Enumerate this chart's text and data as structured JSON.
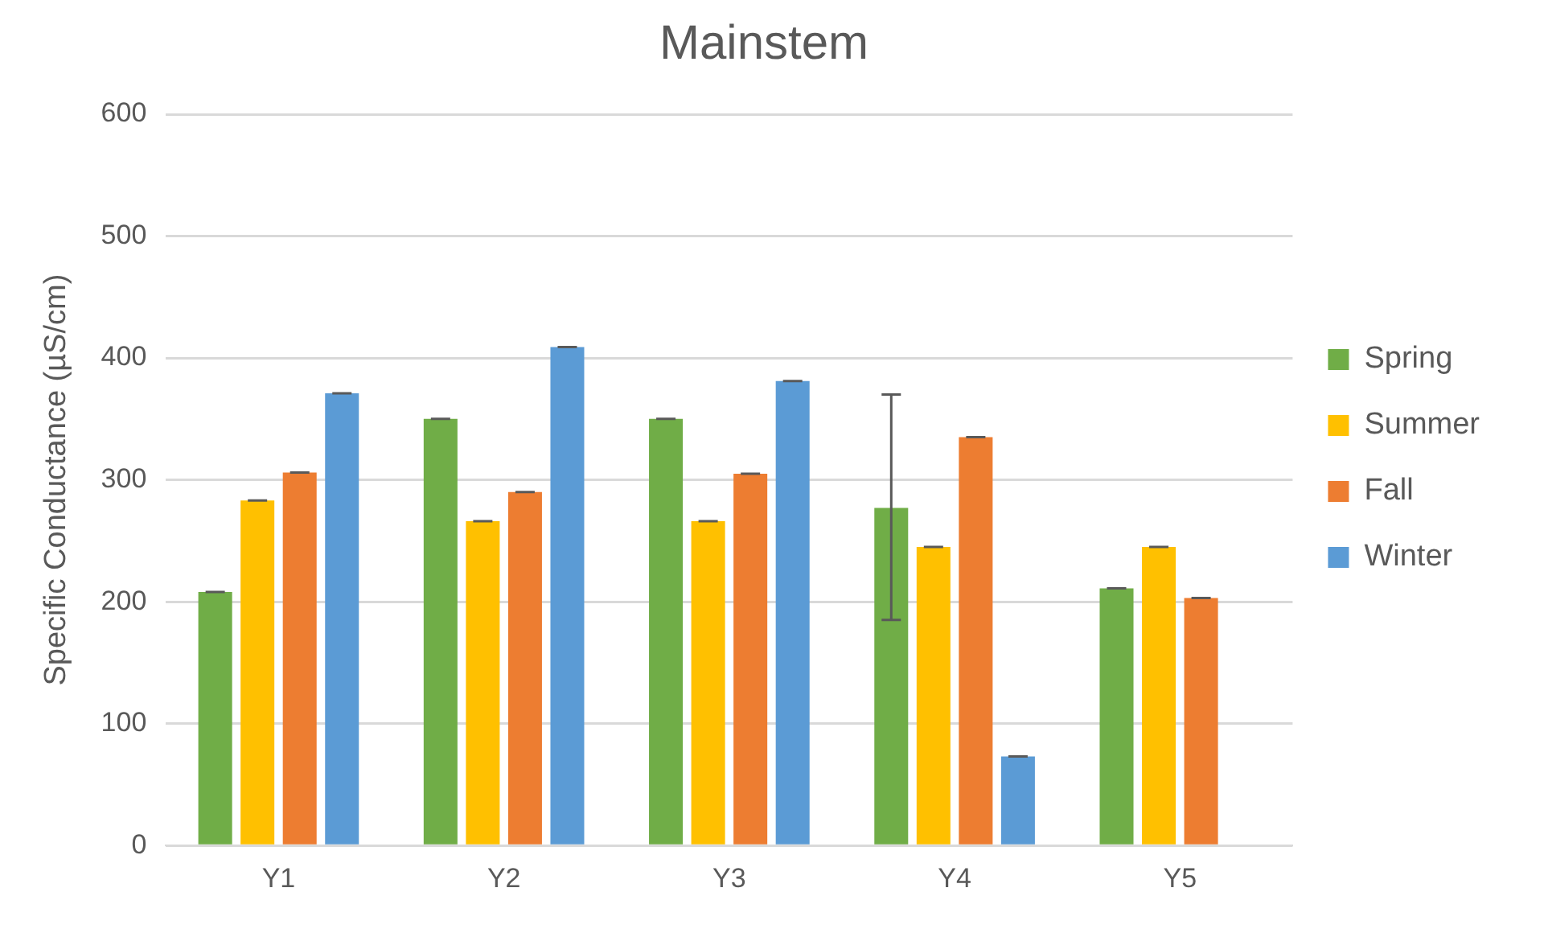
{
  "chart_data": {
    "type": "bar",
    "title": "Mainstem",
    "ylabel": "Specific Conductance (µS/cm)",
    "categories": [
      "Y1",
      "Y2",
      "Y3",
      "Y4",
      "Y5"
    ],
    "series": [
      {
        "name": "Spring",
        "color": "#70ad47",
        "values": [
          208,
          350,
          350,
          277,
          211
        ],
        "errors": [
          0,
          0,
          0,
          [
            185,
            370
          ],
          0
        ]
      },
      {
        "name": "Summer",
        "color": "#ffc000",
        "values": [
          283,
          266,
          266,
          245,
          245
        ],
        "errors": [
          0,
          0,
          0,
          0,
          0
        ]
      },
      {
        "name": "Fall",
        "color": "#ed7d31",
        "values": [
          306,
          290,
          305,
          335,
          203
        ],
        "errors": [
          0,
          0,
          0,
          0,
          0
        ]
      },
      {
        "name": "Winter",
        "color": "#5b9bd5",
        "values": [
          371,
          409,
          381,
          73,
          null
        ],
        "errors": [
          0,
          0,
          0,
          0,
          null
        ]
      }
    ],
    "ylim": [
      0,
      600
    ],
    "yticks": [
      0,
      100,
      200,
      300,
      400,
      500,
      600
    ],
    "grid": "y",
    "legend": "right"
  }
}
